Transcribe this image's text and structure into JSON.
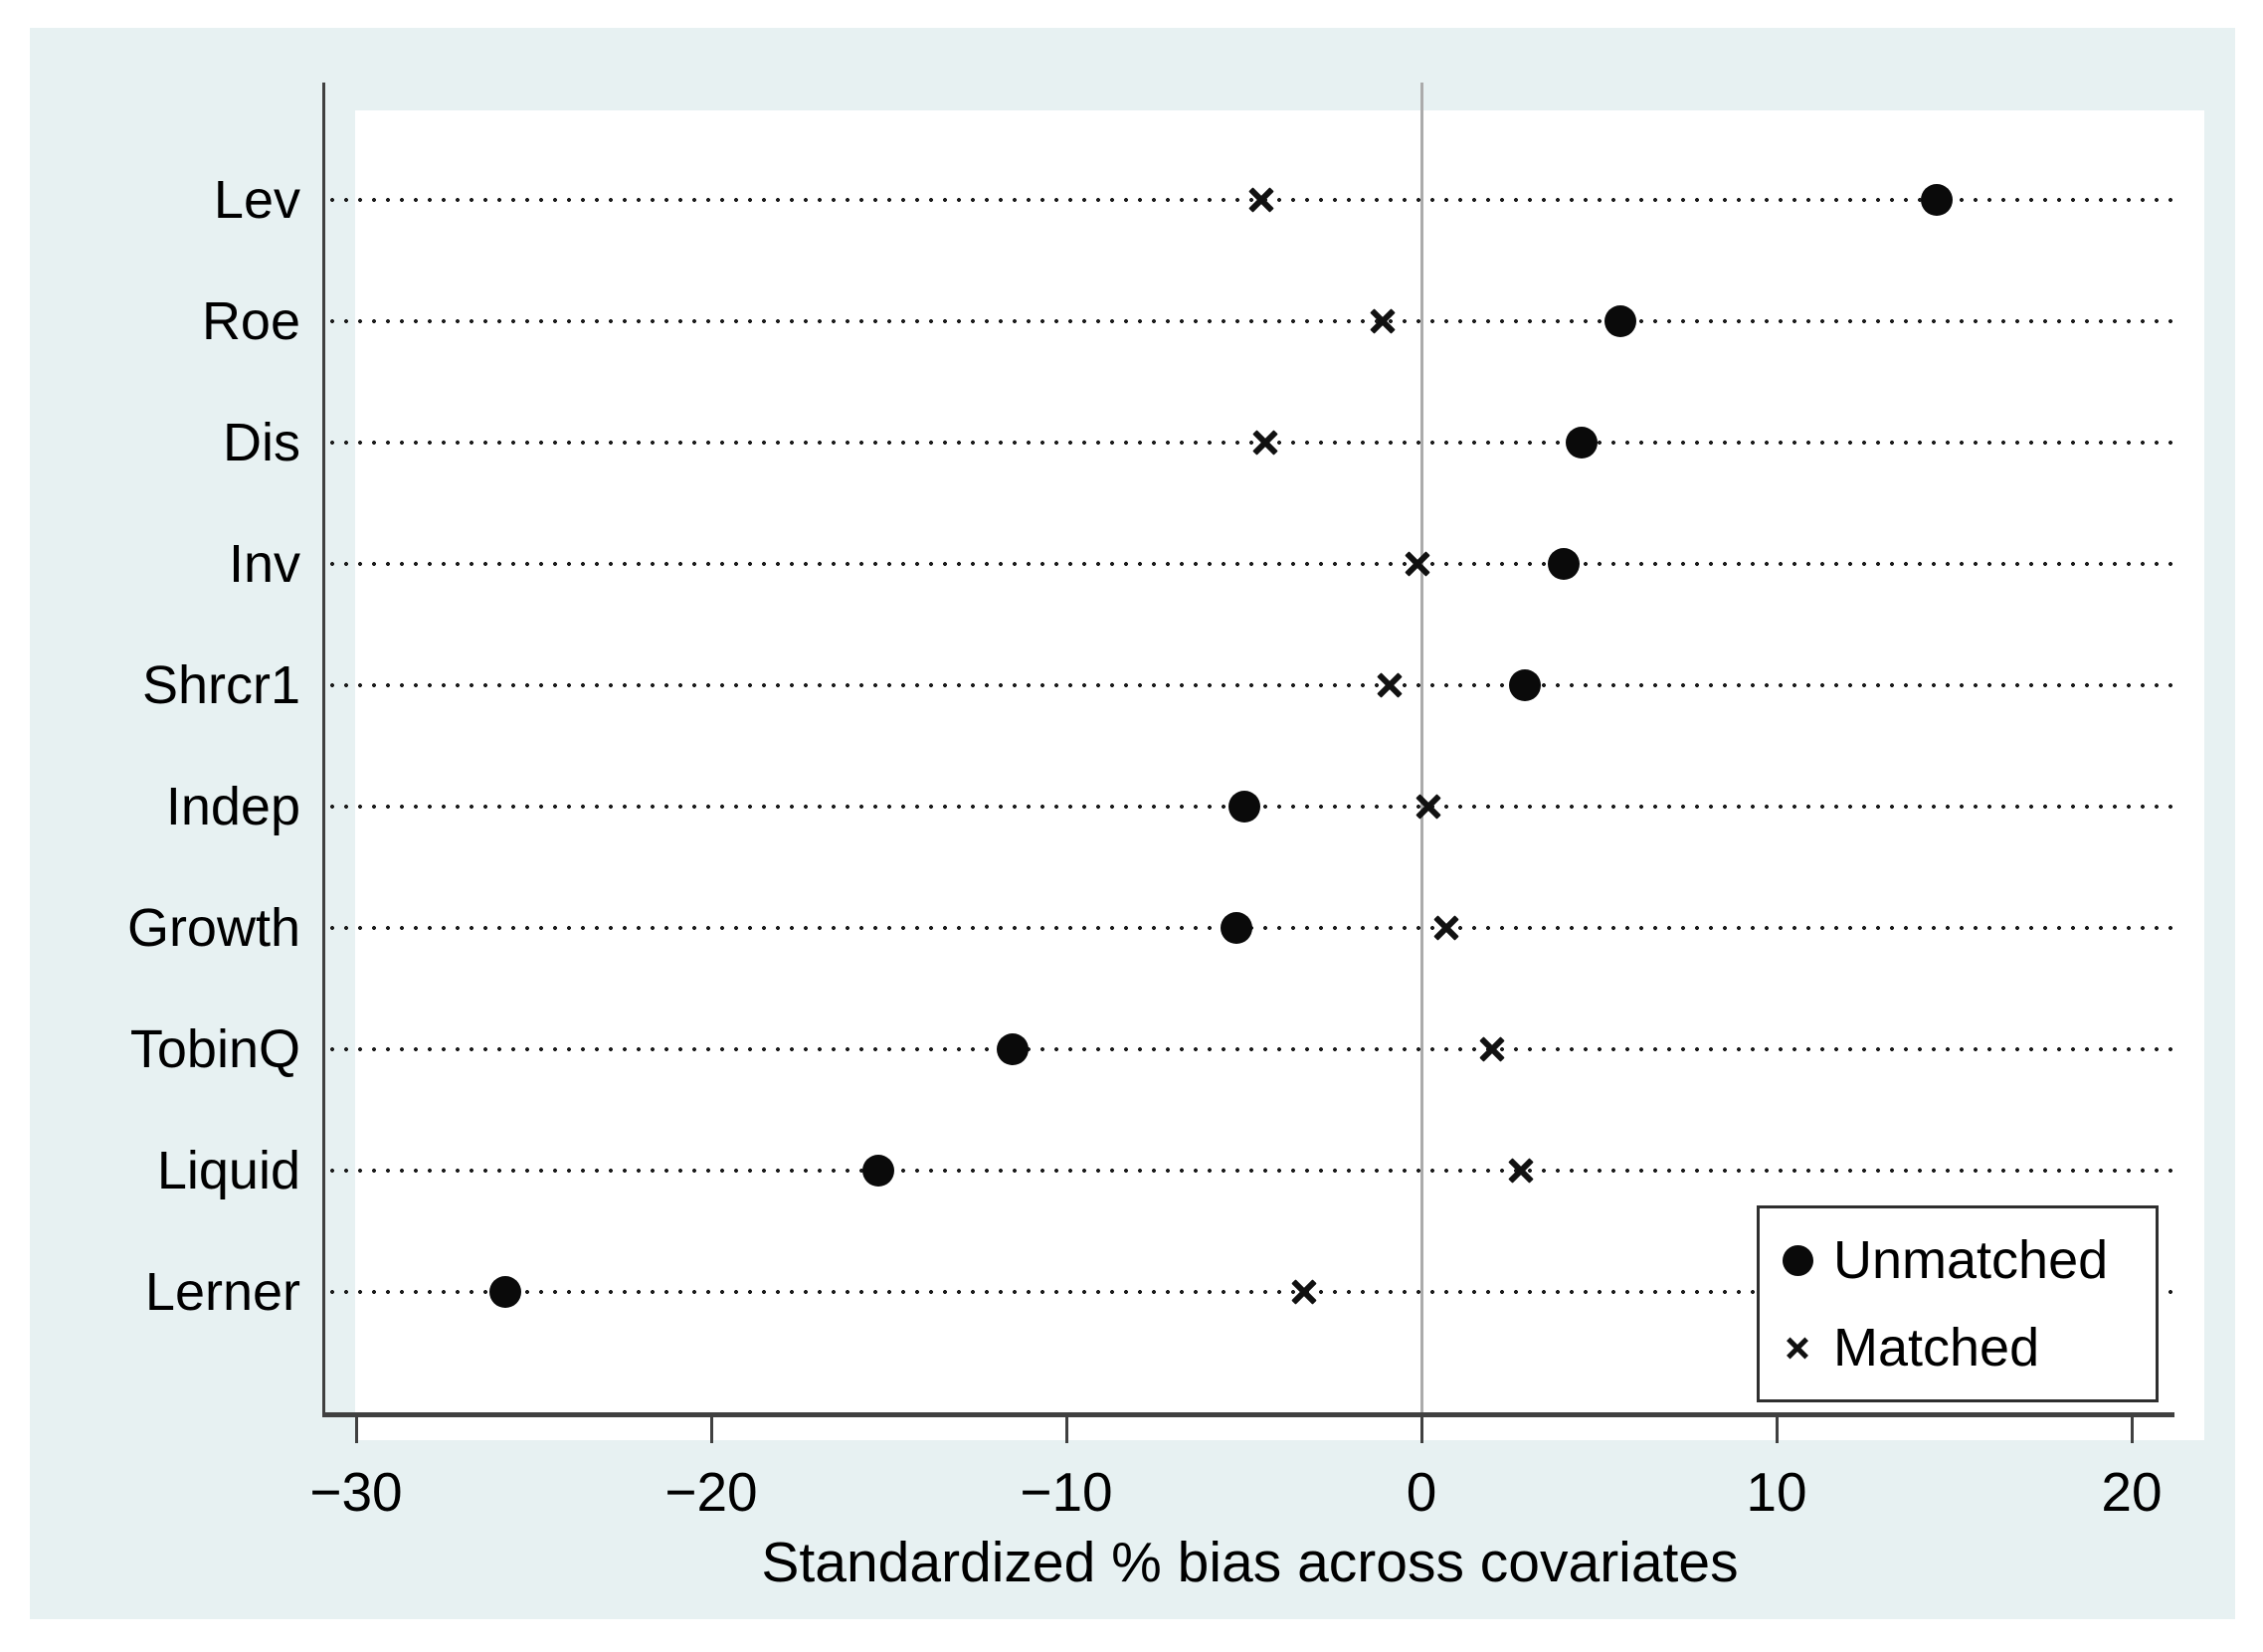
{
  "colors": {
    "canvas_bg": "#e7f1f2",
    "plot_bg": "#ffffff",
    "axis": "#404040",
    "grid_dot": "#1c1c1c",
    "zero_line": "#ababab",
    "marker": "#0a0a0a"
  },
  "chart_data": {
    "type": "scatter",
    "subtype": "horizontal-dot-plot",
    "title": "",
    "xlabel": "Standardized % bias across covariates",
    "ylabel": "",
    "categories": [
      "Lev",
      "Roe",
      "Dis",
      "Inv",
      "Shrcr1",
      "Indep",
      "Growth",
      "TobinQ",
      "Liquid",
      "Lerner"
    ],
    "series": [
      {
        "name": "Unmatched",
        "marker": "circle",
        "values": [
          14.5,
          5.6,
          4.5,
          4.0,
          2.9,
          -5.0,
          -5.2,
          -11.5,
          -15.3,
          -25.8
        ]
      },
      {
        "name": "Matched",
        "marker": "x",
        "values": [
          -4.5,
          -1.1,
          -4.4,
          -0.1,
          -0.9,
          0.2,
          0.7,
          2.0,
          2.8,
          -3.3
        ]
      }
    ],
    "x_ticks": [
      -30,
      -20,
      -10,
      0,
      10,
      20
    ],
    "x_tick_labels": [
      "−30",
      "−20",
      "−10",
      "0",
      "10",
      "20"
    ],
    "xlim": [
      -30.9,
      21.2
    ],
    "zero_reference_line": 0,
    "grid": "horizontal dotted lines per category",
    "legend": {
      "position": "bottom-right",
      "entries": [
        "Unmatched",
        "Matched"
      ]
    }
  }
}
